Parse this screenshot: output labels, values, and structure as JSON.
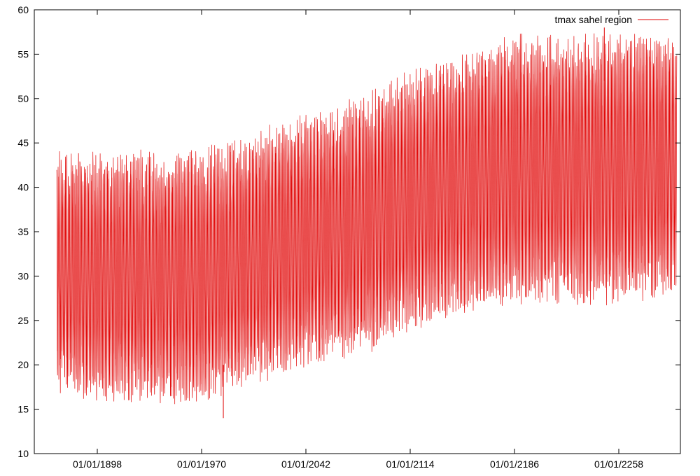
{
  "chart_data": {
    "type": "line",
    "title": "",
    "xlabel": "",
    "ylabel": "",
    "ylim": [
      10,
      60
    ],
    "y_ticks": [
      10,
      15,
      20,
      25,
      30,
      35,
      40,
      45,
      50,
      55,
      60
    ],
    "x_tick_labels": [
      "01/01/1898",
      "01/01/1970",
      "01/01/2042",
      "01/01/2114",
      "01/01/2186",
      "01/01/2258"
    ],
    "grid": false,
    "legend": {
      "position": "top-right"
    },
    "series": [
      {
        "name": "tmax sahel region",
        "color": "#e00000",
        "sampling": "daily maximum temperature, oscillating with an annual cycle",
        "annual_cycle_range_by_year": [
          {
            "x": "01/01/1870",
            "low": 18,
            "high": 43
          },
          {
            "x": "01/01/1898",
            "low": 17,
            "high": 43
          },
          {
            "x": "01/01/1934",
            "low": 17,
            "high": 43
          },
          {
            "x": "01/01/1970",
            "low": 17,
            "high": 43
          },
          {
            "x": "01/01/2006",
            "low": 19,
            "high": 45
          },
          {
            "x": "01/01/2042",
            "low": 21,
            "high": 47
          },
          {
            "x": "01/01/2078",
            "low": 22,
            "high": 49
          },
          {
            "x": "01/01/2114",
            "low": 25,
            "high": 52
          },
          {
            "x": "01/01/2150",
            "low": 27,
            "high": 54
          },
          {
            "x": "01/01/2186",
            "low": 28,
            "high": 56
          },
          {
            "x": "01/01/2222",
            "low": 28,
            "high": 56
          },
          {
            "x": "01/01/2258",
            "low": 28,
            "high": 56
          },
          {
            "x": "01/01/2298",
            "low": 29,
            "high": 56
          }
        ],
        "extremes": [
          {
            "x": "01/01/1985",
            "y": 14
          },
          {
            "x": "01/01/2248",
            "y": 58
          }
        ]
      }
    ]
  }
}
